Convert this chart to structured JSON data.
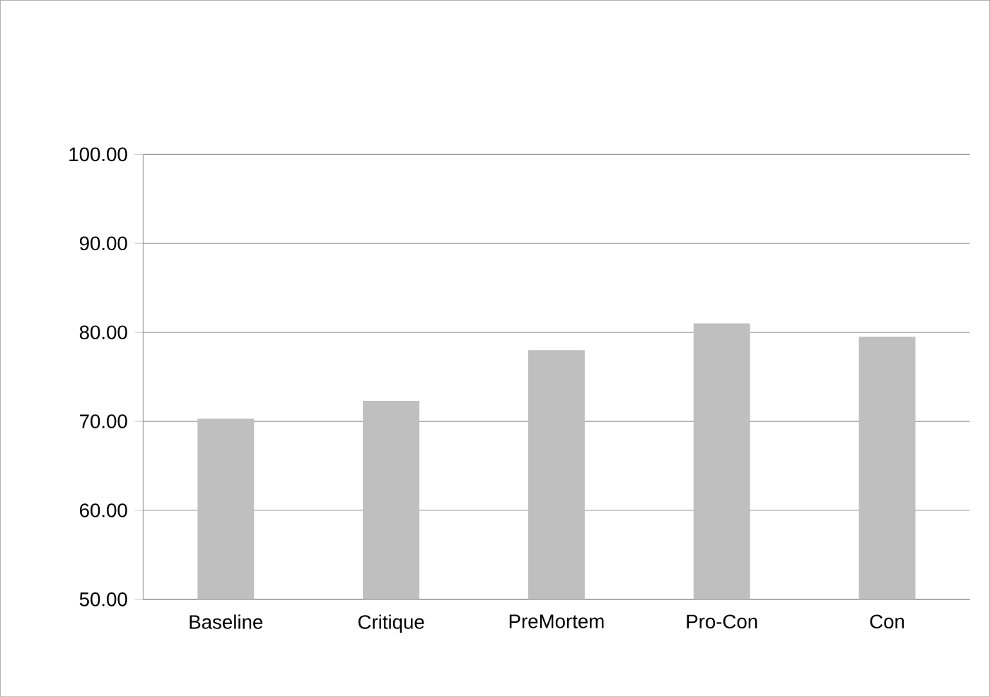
{
  "chart_data": {
    "type": "bar",
    "categories": [
      "Baseline",
      "Critique",
      "PreMortem",
      "Pro-Con",
      "Con"
    ],
    "values": [
      70.3,
      72.3,
      78.0,
      81.0,
      79.5
    ],
    "color": "#bfbfbf",
    "ylim": [
      50,
      100
    ],
    "yticks": [
      {
        "value": 50,
        "label": "50.00"
      },
      {
        "value": 60,
        "label": "60.00"
      },
      {
        "value": 70,
        "label": "70.00"
      },
      {
        "value": 80,
        "label": "80.00"
      },
      {
        "value": 90,
        "label": "90.00"
      },
      {
        "value": 100,
        "label": "100.00"
      }
    ],
    "grid": "y"
  }
}
